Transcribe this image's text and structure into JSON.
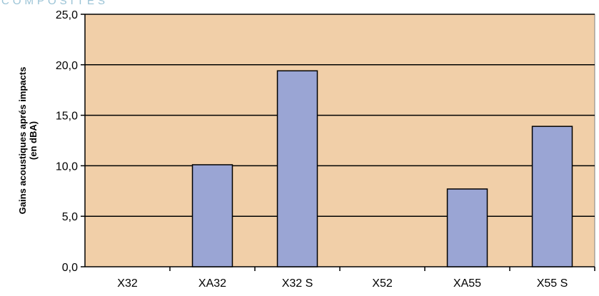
{
  "watermark_text": "COMPOSITES",
  "chart_data": {
    "type": "bar",
    "categories": [
      "X32",
      "XA32",
      "X32 S",
      "X52",
      "XA55",
      "X55 S"
    ],
    "values": [
      0,
      10.1,
      19.4,
      0,
      7.7,
      13.9
    ],
    "ylabel": "Gains acoustiques aprés impacts (en dBA)",
    "ylabel_lines": [
      "Gains acoustiques aprés impacts",
      "(en dBA)"
    ],
    "ylim": [
      0,
      25
    ],
    "yticks": [
      "0,0",
      "5,0",
      "10,0",
      "15,0",
      "20,0",
      "25,0"
    ],
    "grid": true,
    "colors": {
      "plot_bg": "#f1cfa8",
      "bar": "#9aa5d4",
      "bar_edge": "#000000",
      "grid": "#000000"
    }
  }
}
